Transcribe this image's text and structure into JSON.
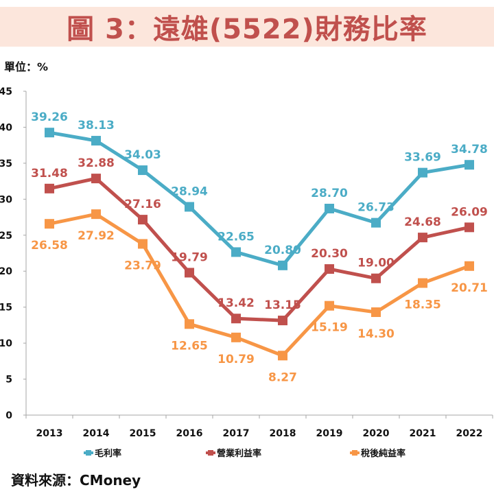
{
  "header": {
    "title": "圖 3：遠雄(5522)財務比率",
    "unit_label": "單位：%"
  },
  "footer": {
    "source": "資料來源：CMoney"
  },
  "chart_data": {
    "type": "line",
    "title": "圖 3：遠雄(5522)財務比率",
    "xlabel": "",
    "ylabel": "單位：%",
    "ylim": [
      0,
      45
    ],
    "yticks": [
      0,
      5,
      10,
      15,
      20,
      25,
      30,
      35,
      40,
      45
    ],
    "categories": [
      "2013",
      "2014",
      "2015",
      "2016",
      "2017",
      "2018",
      "2019",
      "2020",
      "2021",
      "2022"
    ],
    "grid": false,
    "legend_position": "bottom",
    "series": [
      {
        "name": "毛利率",
        "color": "#4bacc6",
        "label_position": "above",
        "values": [
          39.26,
          38.13,
          34.03,
          28.94,
          22.65,
          20.8,
          28.7,
          26.73,
          33.69,
          34.78
        ],
        "labels": [
          "39.26",
          "38.13",
          "34.03",
          "28.94",
          "22.65",
          "20.80",
          "28.70",
          "26.73",
          "33.69",
          "34.78"
        ]
      },
      {
        "name": "營業利益率",
        "color": "#c0504d",
        "label_position": "above",
        "values": [
          31.48,
          32.88,
          27.16,
          19.79,
          13.42,
          13.15,
          20.3,
          19.0,
          24.68,
          26.09
        ],
        "labels": [
          "31.48",
          "32.88",
          "27.16",
          "19.79",
          "13.42",
          "13.15",
          "20.30",
          "19.00",
          "24.68",
          "26.09"
        ]
      },
      {
        "name": "稅後純益率",
        "color": "#f79646",
        "label_position": "below",
        "values": [
          26.58,
          27.92,
          23.79,
          12.65,
          10.79,
          8.27,
          15.19,
          14.3,
          18.35,
          20.71
        ],
        "labels": [
          "26.58",
          "27.92",
          "23.79",
          "12.65",
          "10.79",
          "8.27",
          "15.19",
          "14.30",
          "18.35",
          "20.71"
        ]
      }
    ]
  }
}
